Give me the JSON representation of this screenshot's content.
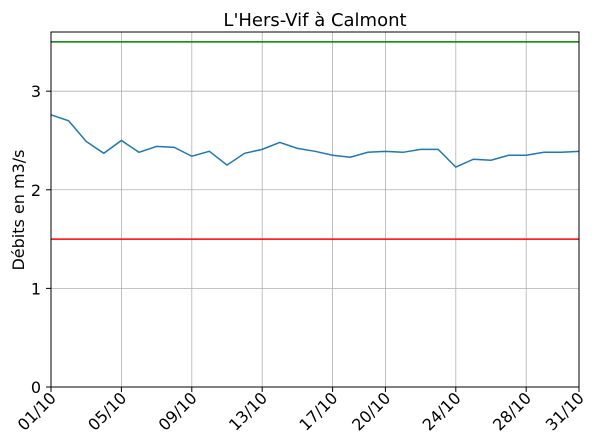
{
  "chart_data": {
    "type": "line",
    "title": "L'Hers-Vif à Calmont",
    "ylabel": "Débits en m3/s",
    "categories": [
      "01/10",
      null,
      null,
      null,
      "05/10",
      null,
      null,
      null,
      "09/10",
      null,
      null,
      null,
      "13/10",
      null,
      null,
      null,
      "17/10",
      null,
      null,
      "20/10",
      null,
      null,
      null,
      "24/10",
      null,
      null,
      null,
      "28/10",
      null,
      null,
      "31/10"
    ],
    "series": [
      {
        "name": "Débits",
        "color": "#1f77b4",
        "values": [
          2.76,
          2.7,
          2.49,
          2.37,
          2.5,
          2.38,
          2.44,
          2.43,
          2.34,
          2.39,
          2.25,
          2.37,
          2.41,
          2.48,
          2.42,
          2.39,
          2.35,
          2.33,
          2.38,
          2.39,
          2.38,
          2.41,
          2.41,
          2.23,
          2.31,
          2.3,
          2.35,
          2.35,
          2.38,
          2.38,
          2.39
        ]
      }
    ],
    "hlines": [
      {
        "value": 3.5,
        "color": "#008000"
      },
      {
        "value": 1.5,
        "color": "#ff0000"
      }
    ],
    "ylim": [
      0,
      3.6
    ],
    "yticks": [
      0,
      1,
      2,
      3
    ],
    "grid": true
  }
}
